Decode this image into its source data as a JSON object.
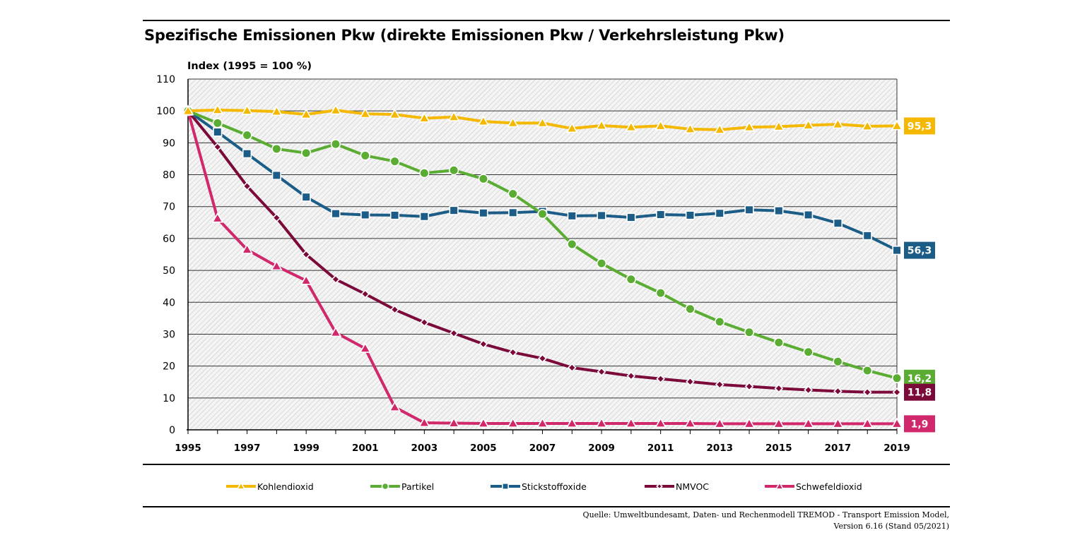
{
  "title": "Spezifische Emissionen Pkw (direkte Emissionen Pkw / Verkehrsleistung Pkw)",
  "source_lines": [
    "Quelle: Umweltbundesamt, Daten- und Rechenmodell TREMOD - Transport Emission Model,",
    "Version 6.16 (Stand 05/2021)"
  ],
  "chart_data": {
    "type": "line",
    "ylabel": "Index (1995 = 100 %)",
    "xlabel": "",
    "ylim": [
      0,
      110
    ],
    "yticks": [
      0,
      10,
      20,
      30,
      40,
      50,
      60,
      70,
      80,
      90,
      100,
      110
    ],
    "xlim": [
      1995,
      2019
    ],
    "xtick_labels": [
      "1995",
      "1997",
      "1999",
      "2001",
      "2003",
      "2005",
      "2007",
      "2009",
      "2011",
      "2013",
      "2015",
      "2017",
      "2019"
    ],
    "grid": true,
    "background": "hatched",
    "legend_position": "bottom",
    "x": [
      1995,
      1996,
      1997,
      1998,
      1999,
      2000,
      2001,
      2002,
      2003,
      2004,
      2005,
      2006,
      2007,
      2008,
      2009,
      2010,
      2011,
      2012,
      2013,
      2014,
      2015,
      2016,
      2017,
      2018,
      2019
    ],
    "series": [
      {
        "name": "Kohlendioxid",
        "color": "#f5b800",
        "marker": "triangle",
        "end_label": "95,3",
        "values": [
          100,
          100.3,
          100.1,
          99.8,
          98.9,
          100.2,
          99.1,
          98.9,
          97.7,
          98.1,
          96.7,
          96.2,
          96.2,
          94.5,
          95.4,
          94.9,
          95.3,
          94.3,
          94.1,
          94.9,
          95.1,
          95.5,
          95.8,
          95.2,
          95.3
        ]
      },
      {
        "name": "Partikel",
        "color": "#5aad32",
        "marker": "circle",
        "end_label": "16,2",
        "values": [
          100,
          96.2,
          92.4,
          88.1,
          86.8,
          89.6,
          86.0,
          84.2,
          80.5,
          81.4,
          78.7,
          74.0,
          67.7,
          58.2,
          52.2,
          47.2,
          42.9,
          37.9,
          33.9,
          30.6,
          27.4,
          24.4,
          21.4,
          18.6,
          16.2
        ]
      },
      {
        "name": "Stickstoffoxide",
        "color": "#1c5d87",
        "marker": "square",
        "end_label": "56,3",
        "values": [
          100,
          93.4,
          86.6,
          79.8,
          73.0,
          67.8,
          67.4,
          67.3,
          66.9,
          68.8,
          68.0,
          68.1,
          68.5,
          67.1,
          67.2,
          66.6,
          67.5,
          67.3,
          67.9,
          69.0,
          68.7,
          67.4,
          64.8,
          60.9,
          56.3
        ]
      },
      {
        "name": "NMVOC",
        "color": "#7b0a3a",
        "marker": "diamond",
        "end_label": "11,8",
        "values": [
          100,
          88.7,
          76.4,
          66.5,
          55.0,
          47.2,
          42.6,
          37.7,
          33.7,
          30.3,
          26.9,
          24.3,
          22.4,
          19.5,
          18.2,
          16.9,
          16.0,
          15.1,
          14.2,
          13.6,
          13.0,
          12.5,
          12.1,
          11.8,
          11.8
        ]
      },
      {
        "name": "Schwefeldioxid",
        "color": "#d1286b",
        "marker": "triangle",
        "end_label": "1,9",
        "values": [
          100,
          66.3,
          56.5,
          51.3,
          46.8,
          30.5,
          25.5,
          7.1,
          2.2,
          2.1,
          2.0,
          2.0,
          2.0,
          2.0,
          2.0,
          2.0,
          2.0,
          2.0,
          1.9,
          1.9,
          1.9,
          1.9,
          1.9,
          1.9,
          1.9
        ]
      }
    ]
  }
}
